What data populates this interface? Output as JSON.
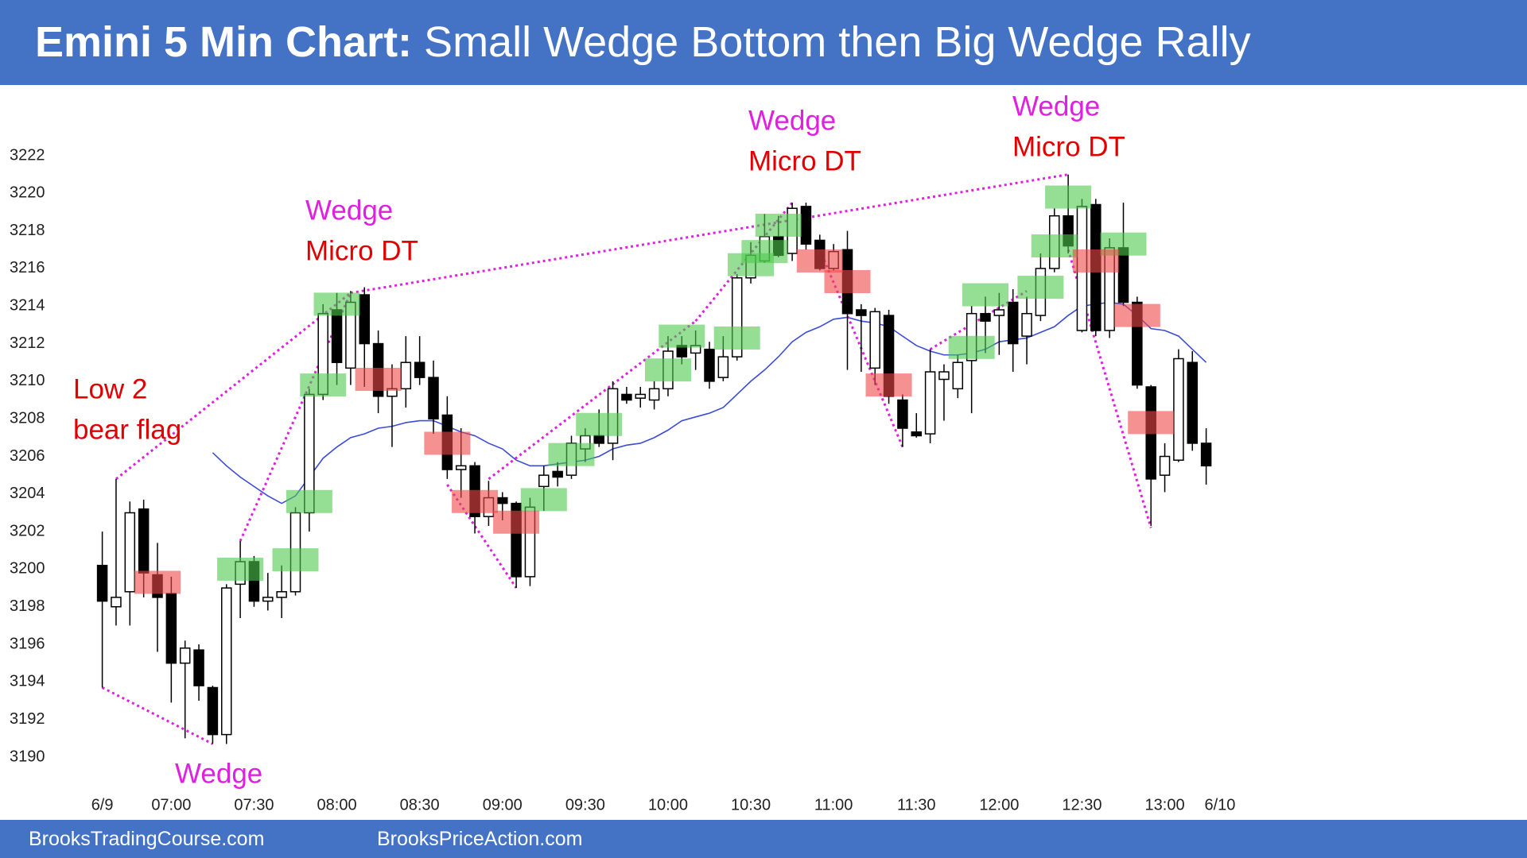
{
  "header": {
    "title_bold": "Emini 5 Min Chart:",
    "title_rest": "Small Wedge Bottom then Big Wedge Rally"
  },
  "footer": {
    "left": "BrooksTradingCourse.com",
    "right": "BrooksPriceAction.com"
  },
  "chart_data": {
    "type": "candlestick",
    "categories": [
      "6/9",
      null,
      null,
      null,
      null,
      "07:00",
      null,
      null,
      null,
      null,
      null,
      "07:30",
      null,
      null,
      null,
      null,
      null,
      "08:00",
      null,
      null,
      null,
      null,
      null,
      "08:30",
      null,
      null,
      null,
      null,
      null,
      "09:00",
      null,
      null,
      null,
      null,
      null,
      "09:30",
      null,
      null,
      null,
      null,
      null,
      "10:00",
      null,
      null,
      null,
      null,
      null,
      "10:30",
      null,
      null,
      null,
      null,
      null,
      "11:00",
      null,
      null,
      null,
      null,
      null,
      "11:30",
      null,
      null,
      null,
      null,
      null,
      "12:00",
      null,
      null,
      null,
      null,
      null,
      "12:30",
      null,
      null,
      null,
      null,
      null,
      "13:00",
      null,
      null,
      null,
      "6/10"
    ],
    "open": [
      3200.2,
      3198,
      3198.8,
      3203.2,
      3199.7,
      3198.7,
      3195,
      3195.7,
      3193.7,
      3191.2,
      3199.2,
      3200.4,
      3198.3,
      3198.5,
      3198.8,
      3203,
      3209.3,
      3213.8,
      3210.7,
      3214.6,
      3212,
      3209.2,
      3209.6,
      3211,
      3210.2,
      3208.2,
      3205.3,
      3205.5,
      3202.8,
      3203.8,
      3203.5,
      3199.6,
      3204.4,
      3205.2,
      3205,
      3206.4,
      3207.1,
      3206.7,
      3209.3,
      3209.1,
      3209,
      3209.6,
      3211.9,
      3211.5,
      3211.7,
      3210.2,
      3211.3,
      3215.5,
      3216.4,
      3217.7,
      3216.8,
      3219.3,
      3217.5,
      3216,
      3217,
      3213.8,
      3210.7,
      3213.5,
      3209,
      3207.3,
      3207.2,
      3210.1,
      3209.6,
      3211.1,
      3213.6,
      3213.5,
      3214.2,
      3212.4,
      3213.5,
      3216,
      3218.8,
      3212.7,
      3219.4,
      3212.7,
      3217.1,
      3214.2,
      3209.7,
      3205,
      3205.8,
      3211,
      3206.7,
      null
    ],
    "high": [
      3202,
      3204.8,
      3203.6,
      3203.7,
      3201.4,
      3199.6,
      3196.2,
      3196,
      3193.8,
      3199.2,
      3201.5,
      3200.7,
      3199.8,
      3200.2,
      3203.3,
      3209.6,
      3214.1,
      3214.7,
      3214.8,
      3215,
      3212.7,
      3210.9,
      3212.4,
      3212.4,
      3211.1,
      3209.2,
      3207.5,
      3205.7,
      3204.7,
      3204.1,
      3203.6,
      3203.8,
      3205.5,
      3205.7,
      3207.1,
      3207.5,
      3208.5,
      3210,
      3209.7,
      3209.7,
      3210,
      3212.4,
      3212.4,
      3212.7,
      3212.1,
      3212.4,
      3215.7,
      3217.4,
      3218.9,
      3218.8,
      3219.5,
      3219.5,
      3217.8,
      3217.3,
      3218,
      3214.1,
      3213.9,
      3213.8,
      3209.3,
      3208.3,
      3211.7,
      3210.9,
      3211.4,
      3214,
      3214.5,
      3214.7,
      3214.9,
      3214.5,
      3216.8,
      3219.2,
      3221,
      3219.7,
      3219.7,
      3217.6,
      3219.5,
      3214.5,
      3209.8,
      3206.7,
      3211.7,
      3211.6,
      3207.5,
      null
    ],
    "low": [
      3193.7,
      3197,
      3197,
      3198.5,
      3195.6,
      3192.9,
      3191,
      3193,
      3190.7,
      3190.7,
      3197.4,
      3198,
      3197.8,
      3197.4,
      3198.6,
      3202,
      3209,
      3209.8,
      3209.8,
      3209.7,
      3208.3,
      3206.5,
      3208.6,
      3209.8,
      3207.2,
      3204.8,
      3203.8,
      3201.9,
      3202.3,
      3202.6,
      3199,
      3199.1,
      3203.1,
      3204.4,
      3204.8,
      3205.7,
      3206.5,
      3205.8,
      3208.8,
      3208.6,
      3208.5,
      3209.2,
      3210.9,
      3210.6,
      3209.6,
      3210,
      3211.1,
      3215.2,
      3216.3,
      3216.6,
      3216.4,
      3217,
      3215.9,
      3215.9,
      3210.6,
      3210.5,
      3209.8,
      3208.8,
      3206.5,
      3207,
      3206.7,
      3207.9,
      3209.1,
      3208.3,
      3211.5,
      3211.4,
      3210.5,
      3210.9,
      3213.2,
      3215.8,
      3216.8,
      3212.6,
      3212.4,
      3212.3,
      3214,
      3209.6,
      3202.3,
      3204.1,
      3205.7,
      3206.3,
      3204.5,
      null
    ],
    "close": [
      3198.3,
      3198.5,
      3203,
      3199.8,
      3198.5,
      3195,
      3195.8,
      3193.8,
      3191.2,
      3199,
      3200.4,
      3198.3,
      3198.5,
      3198.8,
      3203,
      3209.3,
      3213.6,
      3211,
      3214.2,
      3212,
      3209.2,
      3209.6,
      3211,
      3210.2,
      3208,
      3205.3,
      3205.5,
      3202.8,
      3203.8,
      3203.5,
      3199.6,
      3203.3,
      3205,
      3204.9,
      3206.7,
      3207.1,
      3206.7,
      3209.6,
      3209,
      3209.3,
      3209.6,
      3211.6,
      3211.3,
      3211.9,
      3210,
      3211.3,
      3215.5,
      3216.7,
      3217.7,
      3216.7,
      3219.2,
      3217.3,
      3216,
      3216.9,
      3213.6,
      3213.5,
      3213.7,
      3209.2,
      3207.5,
      3207.1,
      3210.5,
      3210.5,
      3211,
      3213.6,
      3213.2,
      3213.8,
      3212,
      3213.6,
      3216,
      3218.8,
      3217.2,
      3219.3,
      3212.7,
      3217.1,
      3214.2,
      3209.8,
      3204.8,
      3206,
      3211.2,
      3206.7,
      3205.5,
      null
    ],
    "up_color": "#ffffff",
    "down_color": "#000000",
    "moving_average": {
      "color": "#3b4cd6",
      "values": [
        null,
        null,
        null,
        null,
        null,
        null,
        null,
        null,
        3206.2,
        3205.5,
        3204.9,
        3204.4,
        3203.9,
        3203.5,
        3203.9,
        3204.9,
        3205.9,
        3206.5,
        3207.0,
        3207.2,
        3207.5,
        3207.6,
        3207.8,
        3207.9,
        3207.9,
        3207.6,
        3207.3,
        3207.1,
        3206.7,
        3206.4,
        3205.8,
        3205.5,
        3205.5,
        3205.6,
        3205.7,
        3205.8,
        3206.0,
        3206.4,
        3206.6,
        3206.7,
        3207.0,
        3207.4,
        3207.9,
        3208.1,
        3208.3,
        3208.6,
        3209.3,
        3210.0,
        3210.6,
        3211.3,
        3212.1,
        3212.6,
        3212.9,
        3213.3,
        3213.4,
        3213.2,
        3213.1,
        3212.9,
        3212.4,
        3211.9,
        3211.6,
        3211.4,
        3211.4,
        3211.5,
        3211.7,
        3212.1,
        3212.2,
        3212.3,
        3212.6,
        3212.9,
        3213.5,
        3214.0,
        3214.1,
        3214.2,
        3214.1,
        3213.5,
        3212.8,
        3212.7,
        3212.4,
        3211.7,
        3211.0,
        null
      ]
    },
    "bull_signals": {
      "color": "#4cc94c",
      "bars": [
        10,
        14,
        15,
        16,
        17,
        32,
        34,
        36,
        41,
        42,
        46,
        47,
        48,
        49,
        63,
        64,
        68,
        69,
        70,
        74
      ],
      "prices": [
        3200,
        3200.5,
        3203.6,
        3209.8,
        3214.1,
        3203.7,
        3206.1,
        3207.7,
        3210.6,
        3212.4,
        3212.3,
        3216.2,
        3216.9,
        3218.3,
        3211.8,
        3214.6,
        3215,
        3217.2,
        3219.8,
        3217.3
      ]
    },
    "bear_signals": {
      "color": "#f04848",
      "bars": [
        4,
        20,
        25,
        27,
        30,
        52,
        54,
        57,
        72,
        75,
        76
      ],
      "prices": [
        3199.3,
        3210.1,
        3206.7,
        3203.6,
        3202.5,
        3216.4,
        3215.3,
        3209.8,
        3216.4,
        3213.5,
        3207.8
      ]
    },
    "trendlines": {
      "color": "#e020e0",
      "lines": [
        {
          "from": [
            1,
            3204.8
          ],
          "to": [
            18,
            3214.7
          ]
        },
        {
          "from": [
            18,
            3214.7
          ],
          "to": [
            70,
            3221
          ]
        },
        {
          "from": [
            0,
            3193.7
          ],
          "to": [
            8,
            3190.7
          ]
        },
        {
          "from": [
            10,
            3201.5
          ],
          "to": [
            18,
            3214.7
          ]
        },
        {
          "from": [
            25,
            3204.5
          ],
          "to": [
            30,
            3199
          ]
        },
        {
          "from": [
            28,
            3204.8
          ],
          "to": [
            43,
            3213.2
          ]
        },
        {
          "from": [
            43,
            3213.2
          ],
          "to": [
            50,
            3219.5
          ]
        },
        {
          "from": [
            52,
            3217
          ],
          "to": [
            58,
            3206.5
          ]
        },
        {
          "from": [
            60,
            3211.7
          ],
          "to": [
            67,
            3214.8
          ]
        },
        {
          "from": [
            70,
            3217
          ],
          "to": [
            76,
            3202.2
          ]
        }
      ]
    },
    "annotations": [
      {
        "text": "Low 2",
        "color": "#e00000"
      },
      {
        "text": "bear flag",
        "color": "#e00000"
      },
      {
        "text": "Wedge",
        "color": "#e020e0"
      },
      {
        "text": "Wedge",
        "color": "#e020e0"
      },
      {
        "text": "Micro DT",
        "color": "#e00000"
      },
      {
        "text": "Wedge",
        "color": "#e020e0"
      },
      {
        "text": "Micro DT",
        "color": "#e00000"
      },
      {
        "text": "Wedge",
        "color": "#e020e0"
      },
      {
        "text": "Micro DT",
        "color": "#e00000"
      }
    ],
    "ylim": [
      3190,
      3222
    ],
    "yticks": [
      3190,
      3192,
      3194,
      3196,
      3198,
      3200,
      3202,
      3204,
      3206,
      3208,
      3210,
      3212,
      3214,
      3216,
      3218,
      3220,
      3222
    ]
  }
}
